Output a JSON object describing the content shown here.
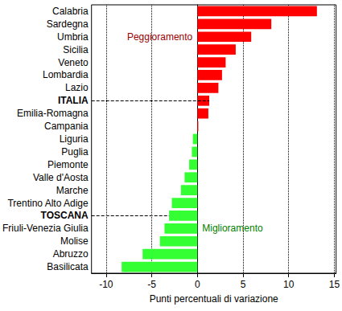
{
  "chart_data": {
    "type": "bar",
    "orientation": "horizontal",
    "categories": [
      "Calabria",
      "Sardegna",
      "Umbria",
      "Sicilia",
      "Veneto",
      "Lombardia",
      "Lazio",
      "ITALIA",
      "Emilia-Romagna",
      "Campania",
      "Liguria",
      "Puglia",
      "Piemonte",
      "Valle d'Aosta",
      "Marche",
      "Trentino Alto Adige",
      "TOSCANA",
      "Friuli-Venezia Giulia",
      "Molise",
      "Abruzzo",
      "Basilicata"
    ],
    "values": [
      13.1,
      8.1,
      5.9,
      4.2,
      3.1,
      2.7,
      2.3,
      1.3,
      1.2,
      0.1,
      -0.5,
      -0.6,
      -0.9,
      -1.4,
      -1.8,
      -2.8,
      -3.1,
      -3.6,
      -4.1,
      -6.0,
      -8.3
    ],
    "colors": [
      "#ff0000",
      "#ff0000",
      "#ff0000",
      "#ff0000",
      "#ff0000",
      "#ff0000",
      "#ff0000",
      "#ff0000",
      "#ff0000",
      "#ff0000",
      "#33ff33",
      "#33ff33",
      "#33ff33",
      "#33ff33",
      "#33ff33",
      "#33ff33",
      "#33ff33",
      "#33ff33",
      "#33ff33",
      "#33ff33",
      "#33ff33"
    ],
    "xlabel": "Punti percentuali di variazione",
    "xlim": [
      -11.6,
      15.2
    ],
    "xticks": [
      -10,
      -5,
      0,
      5,
      10,
      15
    ],
    "annotations": [
      {
        "text": "Peggioramento",
        "color": "#990000"
      },
      {
        "text": "Miglioramento",
        "color": "#008000"
      }
    ],
    "grid": true
  }
}
